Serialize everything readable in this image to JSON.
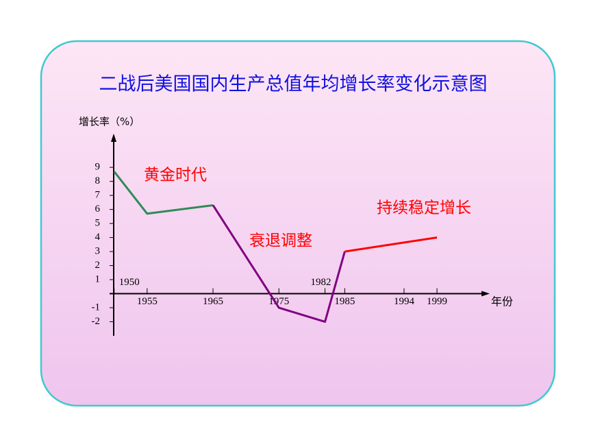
{
  "chart_data": {
    "type": "line",
    "title": "二战后美国国内生产总值年均增长率变化示意图",
    "y_label": "增长率（%）",
    "x_label": "年份",
    "series": [
      {
        "color": "#2e8b57",
        "x": [
          1950,
          1955,
          1965
        ],
        "values": [
          8.7,
          5.7,
          6.3
        ]
      },
      {
        "color": "#800080",
        "x": [
          1965,
          1975,
          1982,
          1985
        ],
        "values": [
          6.3,
          -1,
          -2,
          3
        ]
      },
      {
        "color": "#ff0000",
        "x": [
          1985,
          1999
        ],
        "values": [
          3,
          4
        ]
      }
    ],
    "annotations": [
      {
        "text": "黄金时代",
        "color": "#ff0000"
      },
      {
        "text": "衰退调整",
        "color": "#ff0000"
      },
      {
        "text": "持续稳定增长",
        "color": "#ff0000"
      }
    ],
    "xlim": [
      1949.3,
      2007
    ],
    "xticks": [
      1950,
      1955,
      1965,
      1975,
      1982,
      1985,
      1994,
      1999
    ],
    "ylim": [
      -3,
      11.4
    ],
    "yticks": [
      -2,
      -1,
      1,
      2,
      3,
      4,
      5,
      6,
      7,
      8,
      9
    ]
  }
}
